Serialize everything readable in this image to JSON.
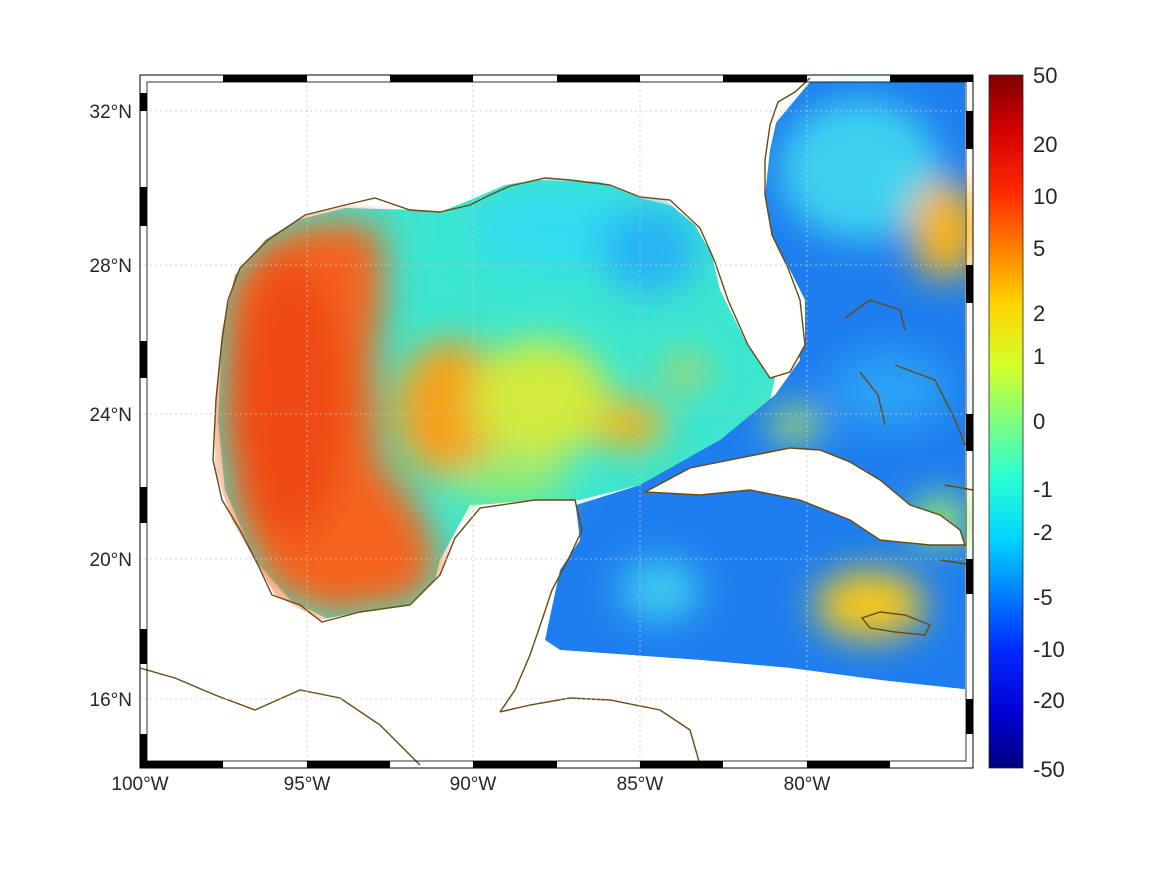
{
  "map": {
    "lon_ticks": [
      "100°W",
      "95°W",
      "90°W",
      "85°W",
      "80°W"
    ],
    "lat_ticks": [
      "32°N",
      "28°N",
      "24°N",
      "20°N",
      "16°N"
    ],
    "coastline_color": "#6b4a10",
    "grid": true,
    "colormap": "jet"
  },
  "colorbar": {
    "ticks": [
      "50",
      "20",
      "10",
      "5",
      "2",
      "1",
      "0",
      "-1",
      "-2",
      "-5",
      "-10",
      "-20",
      "-50"
    ],
    "colors_top_to_bottom": [
      "#7f0000",
      "#d40000",
      "#ff2a00",
      "#ff7f00",
      "#ffd400",
      "#d4ff2a",
      "#7fff7f",
      "#2affd4",
      "#00d4ff",
      "#007fff",
      "#002aff",
      "#0000d4",
      "#00007f"
    ]
  }
}
